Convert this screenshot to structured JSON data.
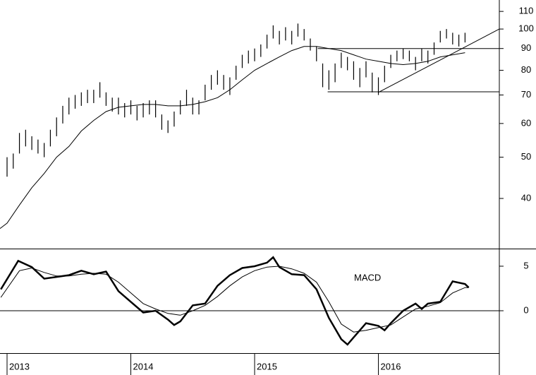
{
  "chart_data": [
    {
      "type": "ohlc",
      "log": true,
      "color": "#000000",
      "ylim": [
        30.5,
        117
      ],
      "yticks": [
        40,
        50,
        60,
        70,
        80,
        90,
        100,
        110
      ],
      "xlim": [
        2012.943,
        2016.977
      ],
      "x": [
        2013,
        2013.05,
        2013.1,
        2013.15,
        2013.2,
        2013.25,
        2013.3,
        2013.35,
        2013.4,
        2013.45,
        2013.5,
        2013.55,
        2013.6,
        2013.65,
        2013.7,
        2013.75,
        2013.8,
        2013.85,
        2013.9,
        2013.95,
        2014,
        2014.05,
        2014.1,
        2014.15,
        2014.2,
        2014.25,
        2014.3,
        2014.35,
        2014.4,
        2014.45,
        2014.5,
        2014.55,
        2014.6,
        2014.65,
        2014.7,
        2014.75,
        2014.8,
        2014.85,
        2014.9,
        2014.95,
        2015,
        2015.05,
        2015.1,
        2015.15,
        2015.2,
        2015.25,
        2015.3,
        2015.35,
        2015.4,
        2015.45,
        2015.5,
        2015.55,
        2015.6,
        2015.65,
        2015.7,
        2015.75,
        2015.8,
        2015.85,
        2015.9,
        2015.95,
        2016,
        2016.05,
        2016.1,
        2016.15,
        2016.2,
        2016.25,
        2016.3,
        2016.35,
        2016.4,
        2016.45,
        2016.5,
        2016.55,
        2016.6,
        2016.65,
        2016.7
      ],
      "high": [
        50,
        51,
        57,
        58,
        56,
        55,
        54,
        58,
        62,
        66,
        69,
        70,
        71,
        72,
        72,
        75,
        71,
        69,
        69,
        67,
        68,
        66,
        67,
        68,
        68,
        63,
        61,
        64,
        68,
        72,
        69,
        68,
        74,
        78,
        80,
        78,
        77,
        82,
        87,
        89,
        90,
        92,
        97,
        102,
        99,
        101,
        99,
        103,
        100,
        95,
        91,
        83,
        80,
        83,
        88,
        86,
        84,
        81,
        84,
        79,
        77,
        82,
        87,
        89,
        90,
        89,
        86,
        90,
        89,
        93,
        99,
        100,
        98,
        97,
        98
      ],
      "low": [
        45,
        47,
        51,
        53,
        52,
        51,
        50,
        53,
        56,
        60,
        63,
        65,
        66,
        67,
        67,
        69,
        66,
        64,
        63,
        62,
        63,
        61,
        62,
        63,
        62,
        58,
        57,
        59,
        63,
        66,
        63,
        63,
        68,
        72,
        74,
        72,
        70,
        76,
        81,
        83,
        84,
        86,
        90,
        95,
        92,
        94,
        92,
        96,
        94,
        89,
        84,
        73,
        72,
        75,
        81,
        80,
        76,
        73,
        77,
        71,
        70,
        75,
        81,
        84,
        85,
        84,
        80,
        84,
        83,
        87,
        93,
        95,
        92,
        91,
        93
      ],
      "lines": [
        {
          "x": [
            2012.943,
            2013,
            2013.1,
            2013.2,
            2013.3,
            2013.4,
            2013.5,
            2013.6,
            2013.7,
            2013.8,
            2013.9,
            2014,
            2014.1,
            2014.2,
            2014.3,
            2014.4,
            2014.5,
            2014.6,
            2014.7,
            2014.8,
            2014.9,
            2015,
            2015.1,
            2015.2,
            2015.3,
            2015.4,
            2015.5,
            2015.6,
            2015.7,
            2015.8,
            2015.9,
            2016,
            2016.1,
            2016.2,
            2016.3,
            2016.4,
            2016.5,
            2016.6,
            2016.7
          ],
          "values": [
            34,
            35,
            38.6,
            42.4,
            45.8,
            50,
            53,
            57.6,
            61,
            64,
            65.5,
            66,
            66.5,
            66.5,
            66,
            66,
            66.5,
            67.5,
            69,
            72,
            76,
            80,
            83,
            86,
            89,
            91,
            91,
            90,
            89,
            87,
            85,
            84,
            83,
            82.5,
            83,
            84,
            86,
            87,
            88
          ]
        },
        {
          "x": [
            2015.51,
            2016.977
          ],
          "values": [
            90,
            90
          ]
        },
        {
          "x": [
            2015.59,
            2016.977
          ],
          "values": [
            71.2,
            71.2
          ]
        },
        {
          "x": [
            2016.0,
            2016.977
          ],
          "values": [
            71,
            100
          ]
        }
      ]
    },
    {
      "type": "line",
      "annotation": "MACD",
      "color": "#000000",
      "ylim": [
        -4.76,
        6.9
      ],
      "yticks": [
        0,
        5
      ],
      "xlim": [
        2012.943,
        2016.977
      ],
      "xticks": [
        2013,
        2014,
        2015,
        2016
      ],
      "series": [
        {
          "width": 2.5,
          "x": [
            2012.95,
            2013.09,
            2013.2,
            2013.3,
            2013.4,
            2013.5,
            2013.6,
            2013.7,
            2013.8,
            2013.9,
            2014,
            2014.1,
            2014.2,
            2014.3,
            2014.35,
            2014.4,
            2014.5,
            2014.6,
            2014.7,
            2014.8,
            2014.9,
            2015,
            2015.1,
            2015.15,
            2015.2,
            2015.3,
            2015.4,
            2015.5,
            2015.6,
            2015.7,
            2015.75,
            2015.8,
            2015.9,
            2016,
            2016.05,
            2016.1,
            2016.2,
            2016.3,
            2016.35,
            2016.4,
            2016.5,
            2016.6,
            2016.7,
            2016.73
          ],
          "values": [
            2.4,
            5.6,
            4.9,
            3.6,
            3.8,
            4,
            4.5,
            4.1,
            4.4,
            2.2,
            1,
            -0.2,
            0,
            -1,
            -1.6,
            -1.2,
            0.6,
            0.8,
            2.8,
            4,
            4.8,
            5,
            5.4,
            6,
            4.9,
            4.1,
            4,
            2.4,
            -0.8,
            -3.2,
            -3.8,
            -3,
            -1.4,
            -1.7,
            -2.2,
            -1.4,
            0,
            0.8,
            0.2,
            0.8,
            1,
            3.3,
            3,
            2.6
          ]
        },
        {
          "width": 1,
          "x": [
            2012.95,
            2013.1,
            2013.2,
            2013.3,
            2013.4,
            2013.5,
            2013.6,
            2013.7,
            2013.8,
            2013.9,
            2014,
            2014.1,
            2014.2,
            2014.3,
            2014.4,
            2014.5,
            2014.6,
            2014.7,
            2014.8,
            2014.9,
            2015,
            2015.1,
            2015.2,
            2015.3,
            2015.4,
            2015.5,
            2015.6,
            2015.7,
            2015.8,
            2015.9,
            2016,
            2016.1,
            2016.2,
            2016.3,
            2016.4,
            2016.5,
            2016.6,
            2016.7,
            2016.73
          ],
          "values": [
            1.5,
            4.5,
            4.8,
            4.3,
            3.9,
            3.9,
            4.1,
            4.2,
            4.1,
            3.2,
            2,
            0.8,
            0.2,
            -0.3,
            -0.5,
            0,
            0.6,
            1.6,
            2.8,
            3.8,
            4.5,
            4.9,
            5,
            4.7,
            4.2,
            3.2,
            1,
            -1.5,
            -2.4,
            -2.2,
            -1.9,
            -1.6,
            -0.7,
            0.2,
            0.5,
            0.9,
            2,
            2.6,
            2.6
          ]
        }
      ]
    }
  ]
}
